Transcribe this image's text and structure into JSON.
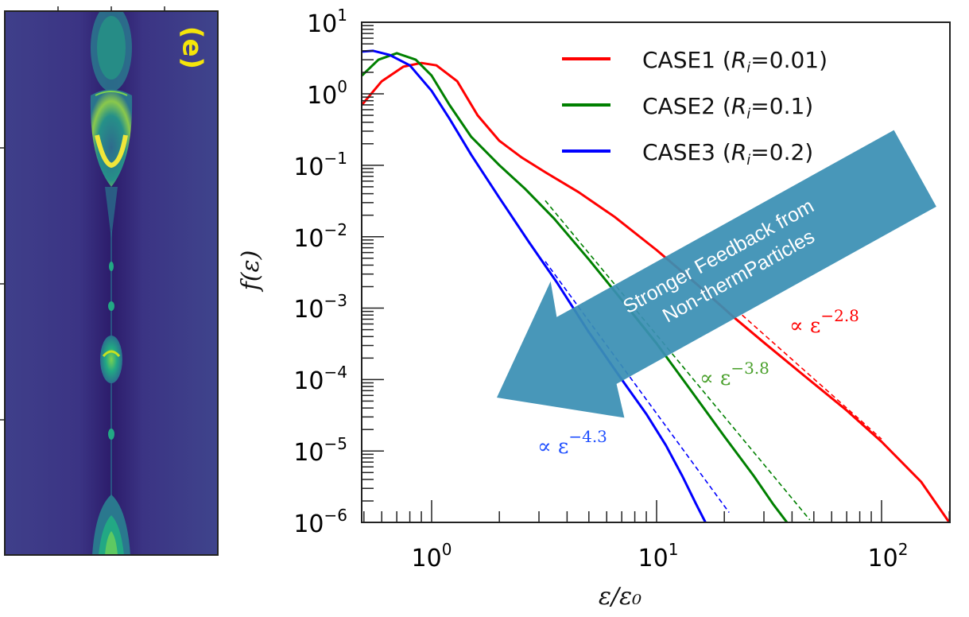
{
  "left_panel": {
    "panel_label": "(e)",
    "label_color": "#f5e50a",
    "description": "viridis-colored 2D density map with vertical chain of plasmoids",
    "colormap": [
      "#3b2a78",
      "#433d8b",
      "#2a788e",
      "#22a884",
      "#7ad151",
      "#fde725"
    ]
  },
  "chart_data": {
    "type": "line",
    "title": "",
    "xlabel": "ε/ε₀",
    "ylabel": "f(ε)",
    "xscale": "log",
    "yscale": "log",
    "xlim": [
      0.49,
      200
    ],
    "ylim": [
      1e-06,
      10
    ],
    "x_ticks": [
      {
        "label": "10",
        "exp": "0",
        "value": 1
      },
      {
        "label": "10",
        "exp": "1",
        "value": 10
      },
      {
        "label": "10",
        "exp": "2",
        "value": 100
      }
    ],
    "y_ticks": [
      {
        "label": "10",
        "exp": "1",
        "value": 10
      },
      {
        "label": "10",
        "exp": "0",
        "value": 1
      },
      {
        "label": "10",
        "exp": "−1",
        "value": 0.1
      },
      {
        "label": "10",
        "exp": "−2",
        "value": 0.01
      },
      {
        "label": "10",
        "exp": "−3",
        "value": 0.001
      },
      {
        "label": "10",
        "exp": "−4",
        "value": 0.0001
      },
      {
        "label": "10",
        "exp": "−5",
        "value": 1e-05
      },
      {
        "label": "10",
        "exp": "−6",
        "value": 1e-06
      }
    ],
    "grid": false,
    "legend_position": "upper right",
    "series": [
      {
        "name": "CASE1 (Ri=0.01)",
        "legend_prefix": "CASE1 (",
        "legend_var": "R",
        "legend_sub": "i",
        "legend_suffix": "=0.01)",
        "color": "#ff0000",
        "x": [
          0.49,
          0.6,
          0.75,
          0.9,
          1.05,
          1.3,
          1.6,
          2.0,
          2.5,
          3.2,
          4.5,
          6.5,
          10,
          15,
          22,
          30,
          45,
          70,
          100,
          150,
          200
        ],
        "y": [
          0.7,
          1.5,
          2.4,
          2.7,
          2.5,
          1.5,
          0.5,
          0.22,
          0.13,
          0.08,
          0.042,
          0.019,
          0.0065,
          0.0022,
          0.00075,
          0.00033,
          0.000115,
          3.7e-05,
          1.35e-05,
          3.7e-06,
          1e-06
        ],
        "power_law": {
          "label": "∝ ε",
          "exponent": "−2.8",
          "slope": -2.8,
          "x_range": [
            24,
            100
          ],
          "y_at_start": 0.0008
        }
      },
      {
        "name": "CASE2 (Ri=0.1)",
        "legend_prefix": "CASE2 (",
        "legend_var": "R",
        "legend_sub": "i",
        "legend_suffix": "=0.1)",
        "color": "#008000",
        "x": [
          0.49,
          0.58,
          0.7,
          0.85,
          1.0,
          1.2,
          1.5,
          2.0,
          2.6,
          3.5,
          5,
          7,
          10,
          14,
          20,
          27,
          33,
          38
        ],
        "y": [
          1.8,
          3.0,
          3.7,
          3.0,
          1.8,
          0.7,
          0.25,
          0.1,
          0.047,
          0.018,
          0.0048,
          0.0013,
          0.00032,
          7.5e-05,
          1.6e-05,
          4.5e-06,
          1.8e-06,
          1e-06
        ],
        "power_law": {
          "label": "∝ ε",
          "exponent": "−3.8",
          "slope": -3.8,
          "x_range": [
            3.2,
            48
          ],
          "y_at_start": 0.032
        }
      },
      {
        "name": "CASE3 (Ri=0.2)",
        "legend_prefix": "CASE3 (",
        "legend_var": "R",
        "legend_sub": "i",
        "legend_suffix": "=0.2)",
        "color": "#0000ff",
        "x": [
          0.49,
          0.55,
          0.65,
          0.8,
          1.0,
          1.2,
          1.5,
          2.0,
          2.7,
          3.6,
          5,
          7,
          9,
          11,
          13,
          15,
          16.5
        ],
        "y": [
          3.9,
          4.0,
          3.5,
          2.5,
          1.1,
          0.45,
          0.14,
          0.035,
          0.0085,
          0.0023,
          0.00046,
          0.0001,
          3.3e-05,
          1.2e-05,
          4.5e-06,
          1.8e-06,
          1e-06
        ],
        "power_law": {
          "label": "∝ ε",
          "exponent": "−4.3",
          "slope": -4.3,
          "x_range": [
            3.2,
            21
          ],
          "y_at_start": 0.0045
        }
      }
    ],
    "annotations": [
      {
        "text_line1": "Stronger Feedback  from",
        "text_line2": "Non-thermParticles",
        "kind": "arrow",
        "color": "#3a8fb4",
        "direction": "toward lower-left"
      }
    ]
  }
}
